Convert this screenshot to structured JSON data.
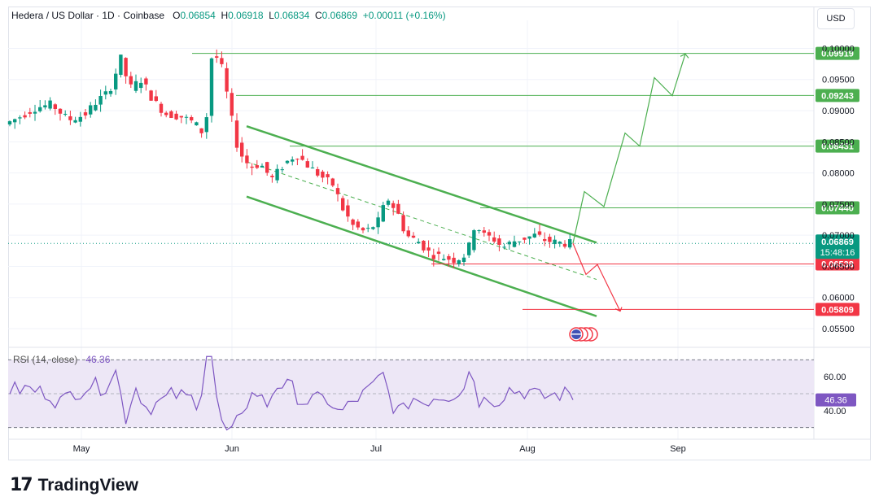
{
  "header": {
    "symbol": "Hedera / US Dollar · 1D · Coinbase",
    "o_label": "O",
    "o_value": "0.06854",
    "h_label": "H",
    "h_value": "0.06918",
    "l_label": "L",
    "l_value": "0.06834",
    "c_label": "C",
    "c_value": "0.06869",
    "change": "+0.00011 (+0.16%)"
  },
  "currency_button": "USD",
  "rsi": {
    "label": "RSI (14, close)",
    "value": "46.36"
  },
  "brand": {
    "name": "TradingView"
  },
  "colors": {
    "up": "#089981",
    "down": "#f23645",
    "green_line": "#4caf50",
    "red_line": "#f23645",
    "rsi_line": "#7e57c2",
    "rsi_band": "#ede7f6"
  },
  "chart_data": {
    "type": "candlestick",
    "price_axis": {
      "range": [
        0.052,
        0.1045
      ],
      "ticks": [
        "0.10000",
        "0.09500",
        "0.09000",
        "0.08500",
        "0.08000",
        "0.07500",
        "0.07000",
        "0.06500",
        "0.06000",
        "0.05500"
      ]
    },
    "time_axis": {
      "labels": [
        "May",
        "Jun",
        "Jul",
        "Aug",
        "Sep"
      ]
    },
    "current_price": {
      "value": "0.06869",
      "countdown": "15:48:16"
    },
    "horizontal_levels": [
      {
        "value": 0.09919,
        "label": "0.09919",
        "color": "green"
      },
      {
        "value": 0.09243,
        "label": "0.09243",
        "color": "green"
      },
      {
        "value": 0.08431,
        "label": "0.08431",
        "color": "green"
      },
      {
        "value": 0.0744,
        "label": "0.07440",
        "color": "green"
      },
      {
        "value": 0.06538,
        "label": "0.06538",
        "color": "red"
      },
      {
        "value": 0.05809,
        "label": "0.05809",
        "color": "red"
      }
    ],
    "rsi": {
      "levels": [
        "60.00",
        "40.00"
      ],
      "range": [
        25,
        75
      ],
      "upper": 70,
      "lower": 30,
      "current": 46.36
    }
  }
}
